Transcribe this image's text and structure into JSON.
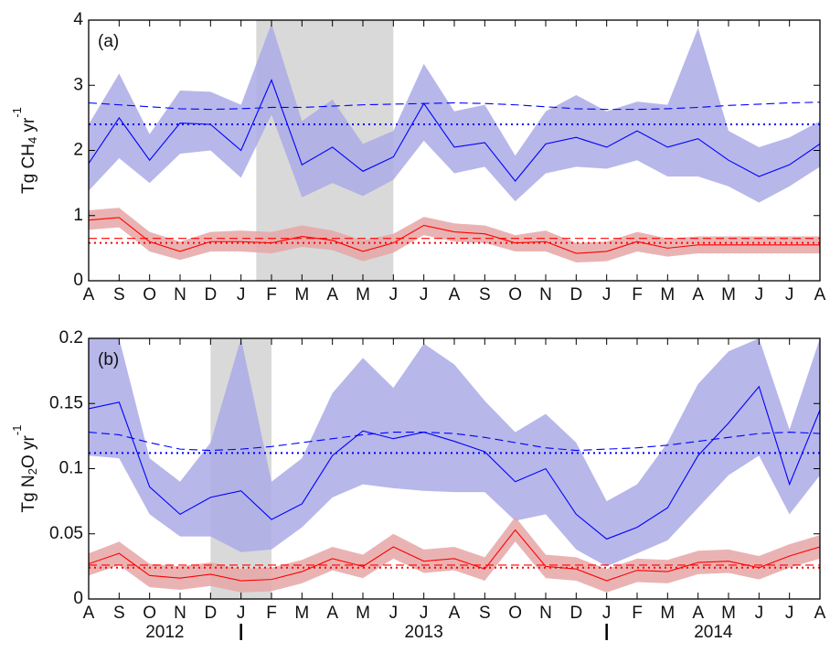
{
  "chart_data": [
    {
      "type": "line",
      "panel_label": "(a)",
      "ylabel": [
        "Tg CH",
        "4",
        " yr",
        "-1"
      ],
      "categories": [
        "A",
        "S",
        "O",
        "N",
        "D",
        "J",
        "F",
        "M",
        "A",
        "M",
        "J",
        "J",
        "A",
        "S",
        "O",
        "N",
        "D",
        "J",
        "F",
        "M",
        "A",
        "M",
        "J",
        "J",
        "A"
      ],
      "ylim": [
        0,
        4
      ],
      "yticks": [
        0,
        1,
        2,
        3,
        4
      ],
      "shade": [
        5.5,
        10
      ],
      "shade_color": "#d9d9d9",
      "series": [
        {
          "color": "#0000ff",
          "style": "solid",
          "fill": "#aaaae6",
          "values": [
            1.8,
            2.5,
            1.85,
            2.42,
            2.4,
            2.0,
            3.08,
            1.78,
            2.05,
            1.68,
            1.9,
            2.72,
            2.05,
            2.12,
            1.53,
            2.1,
            2.2,
            2.05,
            2.3,
            2.05,
            2.18,
            1.85,
            1.6,
            1.78,
            2.1
          ],
          "upper": [
            2.4,
            3.18,
            2.25,
            2.92,
            2.9,
            2.7,
            3.95,
            2.45,
            2.78,
            2.1,
            2.3,
            3.33,
            2.6,
            2.7,
            1.92,
            2.6,
            2.85,
            2.6,
            2.75,
            2.7,
            3.88,
            2.3,
            2.05,
            2.2,
            2.45
          ],
          "lower": [
            1.38,
            1.88,
            1.5,
            1.95,
            2.0,
            1.58,
            2.55,
            1.28,
            1.5,
            1.3,
            1.55,
            2.15,
            1.65,
            1.75,
            1.22,
            1.65,
            1.75,
            1.72,
            1.85,
            1.6,
            1.6,
            1.45,
            1.2,
            1.45,
            1.75
          ]
        },
        {
          "color": "#0000ff",
          "style": "dashed",
          "values": [
            2.73,
            2.7,
            2.67,
            2.64,
            2.63,
            2.64,
            2.66,
            2.66,
            2.68,
            2.7,
            2.71,
            2.72,
            2.73,
            2.72,
            2.7,
            2.67,
            2.64,
            2.63,
            2.63,
            2.64,
            2.66,
            2.69,
            2.71,
            2.73,
            2.74
          ]
        },
        {
          "color": "#0000ff",
          "style": "dotted",
          "values": [
            2.4,
            2.4,
            2.4,
            2.4,
            2.4,
            2.4,
            2.4,
            2.4,
            2.4,
            2.4,
            2.4,
            2.4,
            2.4,
            2.4,
            2.4,
            2.4,
            2.4,
            2.4,
            2.4,
            2.4,
            2.4,
            2.4,
            2.4,
            2.4,
            2.4
          ]
        },
        {
          "color": "#ff0000",
          "style": "solid",
          "fill": "#e6a6a6",
          "values": [
            0.93,
            0.97,
            0.6,
            0.45,
            0.6,
            0.6,
            0.58,
            0.68,
            0.62,
            0.45,
            0.58,
            0.85,
            0.75,
            0.72,
            0.58,
            0.6,
            0.42,
            0.45,
            0.6,
            0.5,
            0.55,
            0.55,
            0.55,
            0.55,
            0.55
          ],
          "upper": [
            1.08,
            1.12,
            0.75,
            0.6,
            0.75,
            0.77,
            0.75,
            0.85,
            0.77,
            0.62,
            0.72,
            0.98,
            0.88,
            0.85,
            0.7,
            0.77,
            0.58,
            0.6,
            0.75,
            0.65,
            0.68,
            0.68,
            0.68,
            0.68,
            0.68
          ],
          "lower": [
            0.78,
            0.82,
            0.45,
            0.32,
            0.45,
            0.45,
            0.42,
            0.52,
            0.47,
            0.3,
            0.43,
            0.7,
            0.6,
            0.58,
            0.45,
            0.45,
            0.28,
            0.3,
            0.45,
            0.37,
            0.42,
            0.42,
            0.42,
            0.42,
            0.42
          ]
        },
        {
          "color": "#ff0000",
          "style": "dashed",
          "values": [
            0.65,
            0.65,
            0.65,
            0.65,
            0.65,
            0.65,
            0.65,
            0.65,
            0.65,
            0.65,
            0.65,
            0.65,
            0.65,
            0.65,
            0.65,
            0.65,
            0.65,
            0.65,
            0.65,
            0.65,
            0.65,
            0.65,
            0.65,
            0.65,
            0.65
          ]
        },
        {
          "color": "#ff0000",
          "style": "dotted",
          "values": [
            0.58,
            0.58,
            0.58,
            0.58,
            0.58,
            0.58,
            0.58,
            0.58,
            0.58,
            0.58,
            0.58,
            0.58,
            0.58,
            0.58,
            0.58,
            0.58,
            0.58,
            0.58,
            0.58,
            0.58,
            0.58,
            0.58,
            0.58,
            0.58,
            0.58
          ]
        }
      ]
    },
    {
      "type": "line",
      "panel_label": "(b)",
      "ylabel": [
        "Tg N",
        "2",
        "O yr",
        "-1"
      ],
      "categories": [
        "A",
        "S",
        "O",
        "N",
        "D",
        "J",
        "F",
        "M",
        "A",
        "M",
        "J",
        "J",
        "A",
        "S",
        "O",
        "N",
        "D",
        "J",
        "F",
        "M",
        "A",
        "M",
        "J",
        "J",
        "A"
      ],
      "ylim": [
        0,
        0.2
      ],
      "yticks": [
        0,
        0.05,
        0.1,
        0.15,
        0.2
      ],
      "shade": [
        4,
        6
      ],
      "shade_color": "#d9d9d9",
      "years": [
        "2012",
        "2013",
        "2014"
      ],
      "year_breaks": [
        5,
        17
      ],
      "series": [
        {
          "color": "#0000ff",
          "style": "solid",
          "fill": "#aaaae6",
          "values": [
            0.146,
            0.151,
            0.086,
            0.065,
            0.078,
            0.083,
            0.061,
            0.073,
            0.11,
            0.129,
            0.123,
            0.128,
            0.121,
            0.113,
            0.09,
            0.1,
            0.065,
            0.046,
            0.055,
            0.07,
            0.11,
            0.135,
            0.163,
            0.088,
            0.145
          ],
          "upper": [
            0.2,
            0.2,
            0.108,
            0.09,
            0.12,
            0.2,
            0.09,
            0.108,
            0.158,
            0.185,
            0.162,
            0.196,
            0.18,
            0.152,
            0.128,
            0.142,
            0.12,
            0.075,
            0.088,
            0.12,
            0.165,
            0.19,
            0.2,
            0.13,
            0.2
          ],
          "lower": [
            0.11,
            0.108,
            0.065,
            0.048,
            0.048,
            0.036,
            0.038,
            0.055,
            0.078,
            0.088,
            0.085,
            0.083,
            0.082,
            0.082,
            0.06,
            0.065,
            0.038,
            0.025,
            0.035,
            0.045,
            0.07,
            0.095,
            0.11,
            0.065,
            0.095
          ]
        },
        {
          "color": "#0000ff",
          "style": "dashed",
          "values": [
            0.128,
            0.126,
            0.12,
            0.115,
            0.114,
            0.115,
            0.117,
            0.12,
            0.123,
            0.126,
            0.128,
            0.128,
            0.127,
            0.124,
            0.12,
            0.116,
            0.114,
            0.115,
            0.116,
            0.118,
            0.121,
            0.124,
            0.127,
            0.128,
            0.127
          ]
        },
        {
          "color": "#0000ff",
          "style": "dotted",
          "values": [
            0.112,
            0.112,
            0.112,
            0.112,
            0.112,
            0.112,
            0.112,
            0.112,
            0.112,
            0.112,
            0.112,
            0.112,
            0.112,
            0.112,
            0.112,
            0.112,
            0.112,
            0.112,
            0.112,
            0.112,
            0.112,
            0.112,
            0.112,
            0.112,
            0.112
          ]
        },
        {
          "color": "#ff0000",
          "style": "solid",
          "fill": "#e6a6a6",
          "values": [
            0.027,
            0.035,
            0.018,
            0.016,
            0.019,
            0.014,
            0.015,
            0.021,
            0.031,
            0.025,
            0.04,
            0.029,
            0.031,
            0.023,
            0.053,
            0.025,
            0.023,
            0.014,
            0.022,
            0.021,
            0.028,
            0.029,
            0.024,
            0.033,
            0.04
          ],
          "upper": [
            0.035,
            0.044,
            0.027,
            0.025,
            0.028,
            0.023,
            0.024,
            0.03,
            0.04,
            0.034,
            0.05,
            0.038,
            0.04,
            0.032,
            0.063,
            0.034,
            0.032,
            0.023,
            0.031,
            0.03,
            0.037,
            0.038,
            0.033,
            0.042,
            0.049
          ],
          "lower": [
            0.018,
            0.026,
            0.009,
            0.007,
            0.01,
            0.005,
            0.006,
            0.012,
            0.022,
            0.016,
            0.031,
            0.02,
            0.022,
            0.014,
            0.044,
            0.016,
            0.014,
            0.005,
            0.013,
            0.012,
            0.019,
            0.02,
            0.015,
            0.024,
            0.031
          ]
        },
        {
          "color": "#ff0000",
          "style": "dashed",
          "values": [
            0.026,
            0.026,
            0.026,
            0.026,
            0.026,
            0.026,
            0.026,
            0.026,
            0.026,
            0.026,
            0.026,
            0.026,
            0.026,
            0.026,
            0.026,
            0.026,
            0.026,
            0.026,
            0.026,
            0.026,
            0.026,
            0.026,
            0.026,
            0.026,
            0.026
          ]
        },
        {
          "color": "#ff0000",
          "style": "dotted",
          "values": [
            0.024,
            0.024,
            0.024,
            0.024,
            0.024,
            0.024,
            0.024,
            0.024,
            0.024,
            0.024,
            0.024,
            0.024,
            0.024,
            0.024,
            0.024,
            0.024,
            0.024,
            0.024,
            0.024,
            0.024,
            0.024,
            0.024,
            0.024,
            0.024,
            0.024
          ]
        }
      ]
    }
  ]
}
